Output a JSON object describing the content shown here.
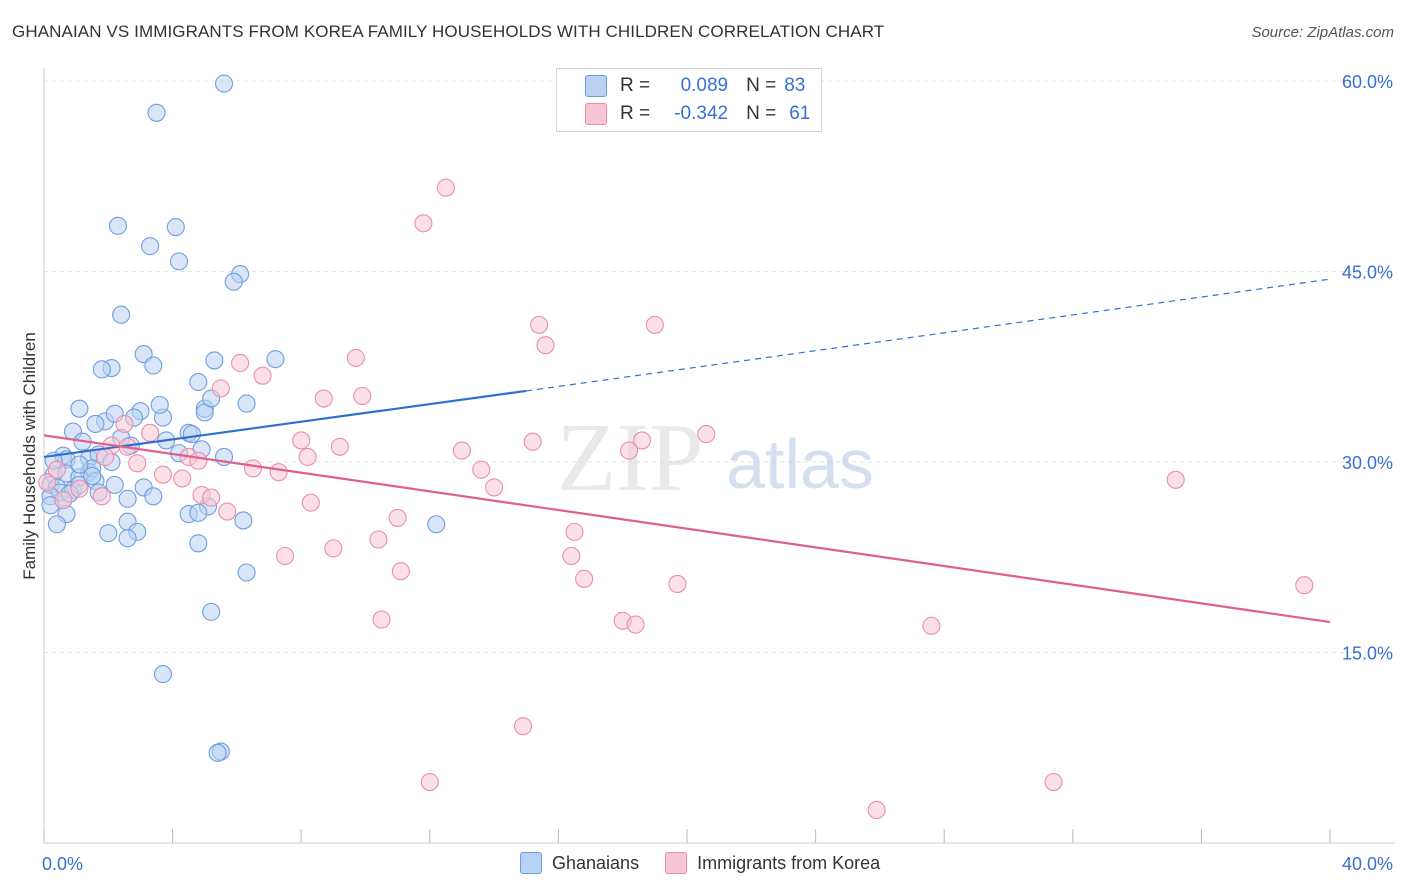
{
  "title": "GHANAIAN VS IMMIGRANTS FROM KOREA FAMILY HOUSEHOLDS WITH CHILDREN CORRELATION CHART",
  "source": "Source: ZipAtlas.com",
  "watermark": {
    "zip": "ZIP",
    "atlas": "atlas"
  },
  "colors": {
    "blue_fill": "#b9d1f3",
    "blue_stroke": "#6f9ee0",
    "blue_line": "#2f6fd0",
    "pink_fill": "#f8c6d6",
    "pink_stroke": "#e98fab",
    "pink_line": "#e0608c",
    "tick_label": "#3a6fd1",
    "grid": "#e3e3e3"
  },
  "legend": {
    "rows": [
      {
        "swatch": "blue",
        "r_label": "R =",
        "r_value": " 0.089",
        "n_label": "N =",
        "n_value": "83"
      },
      {
        "swatch": "pink",
        "r_label": "R =",
        "r_value": "-0.342",
        "n_label": "N =",
        "n_value": "61"
      }
    ]
  },
  "bottom_legend": [
    {
      "swatch": "blue",
      "label": "Ghanaians"
    },
    {
      "swatch": "pink",
      "label": "Immigrants from Korea"
    }
  ],
  "chart_data": {
    "type": "scatter",
    "title": "GHANAIAN VS IMMIGRANTS FROM KOREA FAMILY HOUSEHOLDS WITH CHILDREN CORRELATION CHART",
    "xlabel": "",
    "ylabel": "Family Households with Children",
    "xlim": [
      0,
      40
    ],
    "ylim": [
      0,
      61.5
    ],
    "x_tick_labels": [
      {
        "value": 0,
        "label": "0.0%"
      },
      {
        "value": 40,
        "label": "40.0%"
      }
    ],
    "y_tick_labels": [
      {
        "value": 15,
        "label": "15.0%"
      },
      {
        "value": 30,
        "label": "30.0%"
      },
      {
        "value": 45,
        "label": "45.0%"
      },
      {
        "value": 60,
        "label": "60.0%"
      }
    ],
    "y_gridlines": [
      15,
      30,
      45,
      60
    ],
    "x_minor_ticks": [
      0,
      4,
      8,
      12,
      16,
      20,
      24,
      28,
      32,
      36,
      40
    ],
    "series": [
      {
        "name": "Ghanaians",
        "color": "blue",
        "R": 0.089,
        "N": 83,
        "points": [
          [
            5.6,
            59.8
          ],
          [
            3.5,
            57.5
          ],
          [
            2.3,
            48.6
          ],
          [
            4.1,
            48.5
          ],
          [
            3.3,
            47.0
          ],
          [
            4.2,
            45.8
          ],
          [
            6.1,
            44.8
          ],
          [
            5.9,
            44.2
          ],
          [
            2.4,
            41.6
          ],
          [
            3.1,
            38.5
          ],
          [
            5.3,
            38.0
          ],
          [
            7.2,
            38.1
          ],
          [
            3.4,
            37.6
          ],
          [
            2.1,
            37.4
          ],
          [
            1.8,
            37.3
          ],
          [
            4.8,
            36.3
          ],
          [
            1.1,
            34.2
          ],
          [
            3.0,
            34.0
          ],
          [
            5.0,
            34.2
          ],
          [
            5.0,
            33.9
          ],
          [
            3.7,
            33.5
          ],
          [
            2.8,
            33.5
          ],
          [
            1.9,
            33.2
          ],
          [
            1.6,
            33.0
          ],
          [
            6.3,
            34.6
          ],
          [
            5.2,
            35.0
          ],
          [
            0.9,
            32.4
          ],
          [
            1.2,
            31.6
          ],
          [
            2.4,
            31.9
          ],
          [
            2.7,
            31.3
          ],
          [
            3.8,
            31.7
          ],
          [
            4.5,
            32.3
          ],
          [
            4.6,
            32.2
          ],
          [
            0.6,
            30.5
          ],
          [
            0.7,
            30.2
          ],
          [
            1.4,
            30.3
          ],
          [
            1.7,
            30.6
          ],
          [
            2.1,
            30.0
          ],
          [
            4.2,
            30.7
          ],
          [
            5.6,
            30.4
          ],
          [
            0.3,
            29.0
          ],
          [
            0.7,
            29.1
          ],
          [
            1.4,
            29.2
          ],
          [
            1.5,
            29.5
          ],
          [
            1.1,
            28.8
          ],
          [
            1.6,
            28.5
          ],
          [
            2.2,
            28.2
          ],
          [
            3.1,
            28.0
          ],
          [
            0.2,
            28.2
          ],
          [
            0.4,
            28.0
          ],
          [
            0.5,
            27.6
          ],
          [
            0.9,
            27.8
          ],
          [
            1.1,
            28.2
          ],
          [
            1.5,
            28.9
          ],
          [
            0.2,
            27.3
          ],
          [
            0.6,
            27.0
          ],
          [
            0.8,
            27.5
          ],
          [
            2.6,
            27.1
          ],
          [
            3.4,
            27.3
          ],
          [
            5.1,
            26.5
          ],
          [
            0.2,
            26.6
          ],
          [
            0.7,
            25.9
          ],
          [
            4.5,
            25.9
          ],
          [
            4.8,
            26.0
          ],
          [
            6.2,
            25.4
          ],
          [
            0.4,
            25.1
          ],
          [
            2.6,
            25.3
          ],
          [
            12.2,
            25.1
          ],
          [
            2.0,
            24.4
          ],
          [
            2.9,
            24.5
          ],
          [
            2.6,
            24.0
          ],
          [
            4.8,
            23.6
          ],
          [
            6.3,
            21.3
          ],
          [
            5.2,
            18.2
          ],
          [
            3.7,
            13.3
          ],
          [
            5.5,
            7.2
          ],
          [
            5.4,
            7.1
          ],
          [
            1.1,
            29.8
          ],
          [
            2.2,
            33.8
          ],
          [
            0.3,
            30.1
          ],
          [
            1.7,
            27.6
          ],
          [
            3.6,
            34.5
          ],
          [
            4.9,
            31.0
          ]
        ],
        "trend": {
          "x0": 0,
          "y0": 30.4,
          "x1": 15,
          "y1": 35.6,
          "dashed_to_x": 40,
          "dashed_to_y": 44.4
        }
      },
      {
        "name": "Immigrants from Korea",
        "color": "pink",
        "R": -0.342,
        "N": 61,
        "points": [
          [
            12.5,
            51.6
          ],
          [
            11.8,
            48.8
          ],
          [
            15.4,
            40.8
          ],
          [
            19.0,
            40.8
          ],
          [
            15.6,
            39.2
          ],
          [
            9.7,
            38.2
          ],
          [
            6.1,
            37.8
          ],
          [
            6.8,
            36.8
          ],
          [
            5.5,
            35.8
          ],
          [
            9.9,
            35.2
          ],
          [
            8.7,
            35.0
          ],
          [
            3.3,
            32.3
          ],
          [
            20.6,
            32.2
          ],
          [
            8.0,
            31.7
          ],
          [
            9.2,
            31.2
          ],
          [
            15.2,
            31.6
          ],
          [
            18.6,
            31.7
          ],
          [
            2.1,
            31.3
          ],
          [
            2.6,
            31.2
          ],
          [
            13.0,
            30.9
          ],
          [
            18.2,
            30.9
          ],
          [
            4.5,
            30.4
          ],
          [
            8.2,
            30.4
          ],
          [
            2.9,
            29.9
          ],
          [
            4.8,
            30.1
          ],
          [
            7.3,
            29.2
          ],
          [
            6.5,
            29.5
          ],
          [
            3.7,
            29.0
          ],
          [
            4.3,
            28.7
          ],
          [
            13.6,
            29.4
          ],
          [
            14.0,
            28.0
          ],
          [
            1.1,
            27.9
          ],
          [
            1.8,
            27.3
          ],
          [
            4.9,
            27.4
          ],
          [
            5.2,
            27.2
          ],
          [
            0.1,
            28.4
          ],
          [
            0.6,
            27.0
          ],
          [
            8.3,
            26.8
          ],
          [
            5.7,
            26.1
          ],
          [
            11.0,
            25.6
          ],
          [
            16.5,
            24.5
          ],
          [
            10.4,
            23.9
          ],
          [
            35.2,
            28.6
          ],
          [
            9.0,
            23.2
          ],
          [
            7.5,
            22.6
          ],
          [
            16.4,
            22.6
          ],
          [
            11.1,
            21.4
          ],
          [
            16.8,
            20.8
          ],
          [
            19.7,
            20.4
          ],
          [
            39.2,
            20.3
          ],
          [
            10.5,
            17.6
          ],
          [
            18.0,
            17.5
          ],
          [
            18.4,
            17.2
          ],
          [
            27.6,
            17.1
          ],
          [
            14.9,
            9.2
          ],
          [
            12.0,
            4.8
          ],
          [
            31.4,
            4.8
          ],
          [
            25.9,
            2.6
          ],
          [
            1.9,
            30.4
          ],
          [
            0.4,
            29.4
          ],
          [
            2.5,
            33.0
          ]
        ],
        "trend": {
          "x0": 0,
          "y0": 32.1,
          "x1": 40,
          "y1": 17.4
        }
      }
    ]
  }
}
